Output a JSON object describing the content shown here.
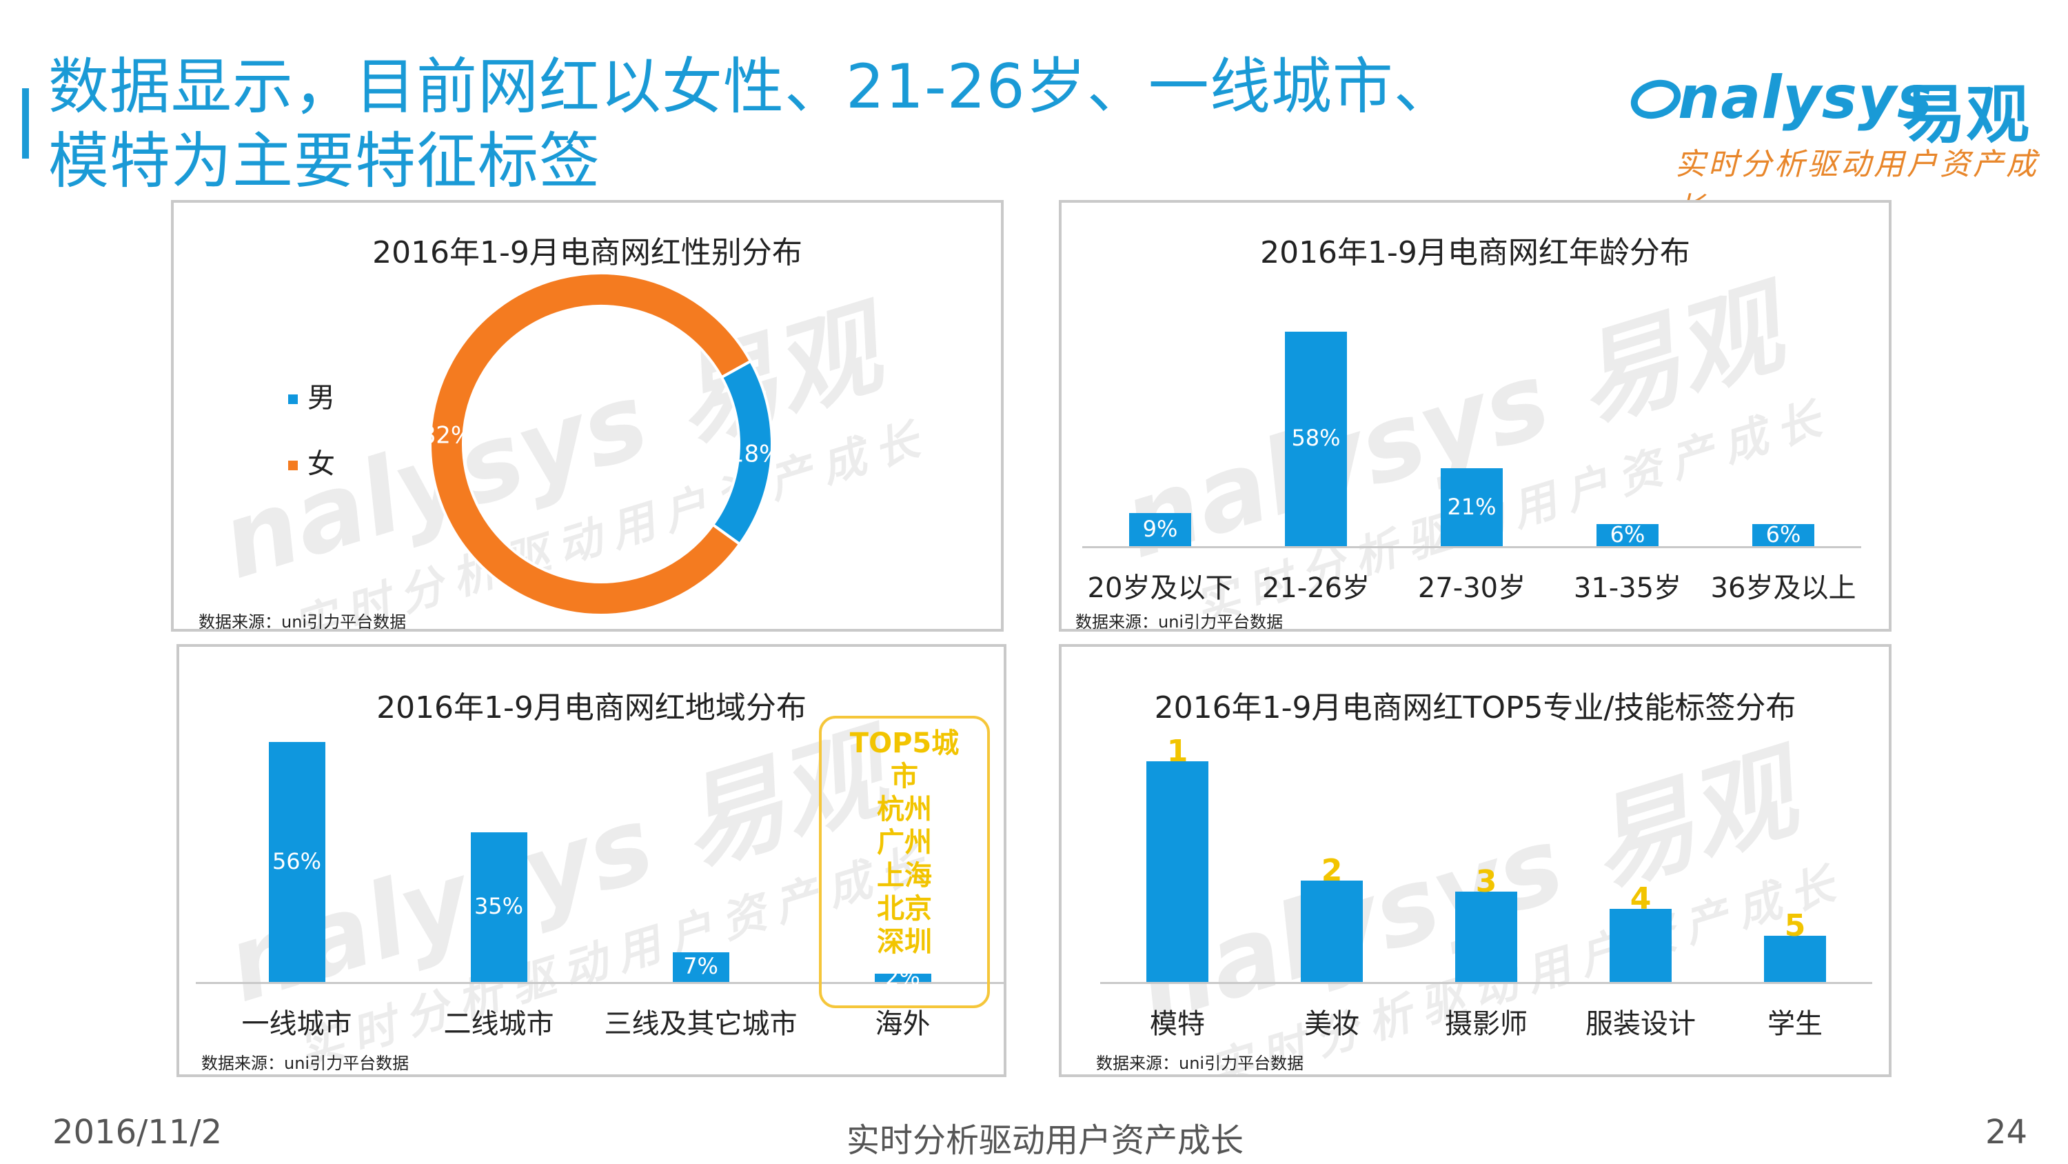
{
  "page": {
    "title_line1": "数据显示，目前网红以女性、21-26岁、一线城市、",
    "title_line2": "模特为主要特征标签",
    "logo": {
      "word": "nalysys",
      "cn": "易观",
      "tagline": "实时分析驱动用户资产成长"
    },
    "footer": {
      "date": "2016/11/2",
      "center": "实时分析驱动用户资产成长",
      "page_number": "24"
    },
    "watermark": {
      "word": "nalysys 易观",
      "tagline": "实时分析驱动用户资产成长"
    }
  },
  "colors": {
    "accent": "#1a9ad6",
    "bar": "#0f97de",
    "female": "#f47b20",
    "rank": "#f2c400",
    "border": "#c9c9c9"
  },
  "chart_data": [
    {
      "type": "pie",
      "title": "2016年1-9月电商网红性别分布",
      "donut": true,
      "slices": [
        {
          "name": "男",
          "value": 18,
          "label": "18%",
          "color": "#0f97de"
        },
        {
          "name": "女",
          "value": 82,
          "label": "82%",
          "color": "#f47b20"
        }
      ],
      "legend": "left",
      "source": "数据来源：uni引力平台数据"
    },
    {
      "type": "bar",
      "title": "2016年1-9月电商网红年龄分布",
      "categories": [
        "20岁及以下",
        "21-26岁",
        "27-30岁",
        "31-35岁",
        "36岁及以上"
      ],
      "values": [
        9,
        58,
        21,
        6,
        6
      ],
      "labels": [
        "9%",
        "58%",
        "21%",
        "6%",
        "6%"
      ],
      "ylim": [
        0,
        60
      ],
      "source": "数据来源：uni引力平台数据"
    },
    {
      "type": "bar",
      "title": "2016年1-9月电商网红地域分布",
      "categories": [
        "一线城市",
        "二线城市",
        "三线及其它城市",
        "海外"
      ],
      "values": [
        56,
        35,
        7,
        2
      ],
      "labels": [
        "56%",
        "35%",
        "7%",
        "2%"
      ],
      "ylim": [
        0,
        56
      ],
      "callout": [
        "TOP5城",
        "市",
        "杭州",
        "广州",
        "上海",
        "北京",
        "深圳"
      ],
      "source": "数据来源：uni引力平台数据"
    },
    {
      "type": "bar",
      "title": "2016年1-9月电商网红TOP5专业/技能标签分布",
      "categories": [
        "模特",
        "美妆",
        "摄影师",
        "服装设计",
        "学生"
      ],
      "ranks": [
        "1",
        "2",
        "3",
        "4",
        "5"
      ],
      "values": [
        100,
        46,
        41,
        33,
        21
      ],
      "ylim": [
        0,
        100
      ],
      "source": "数据来源：uni引力平台数据"
    }
  ]
}
